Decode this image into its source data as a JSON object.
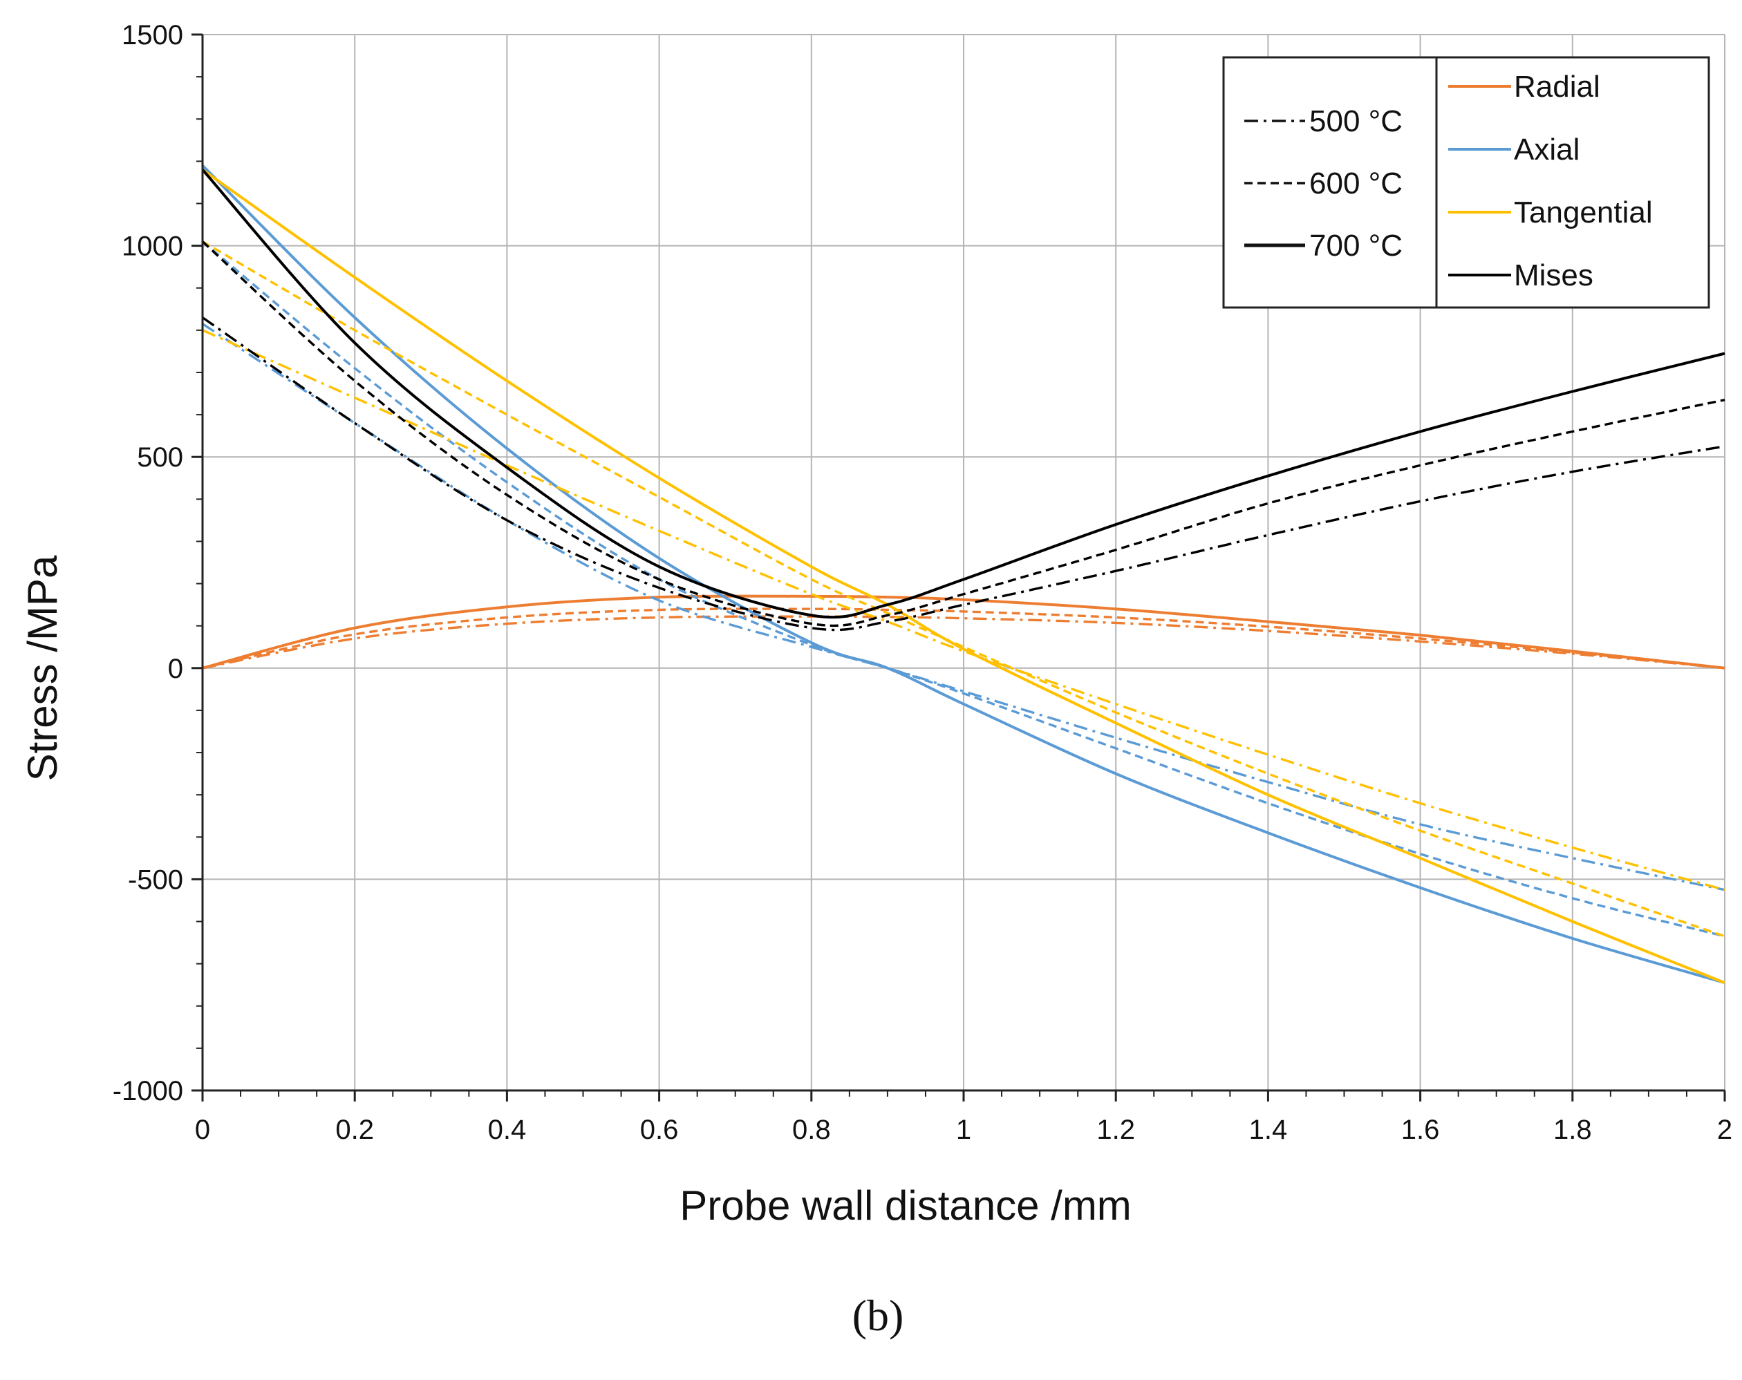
{
  "chart_data": {
    "type": "line",
    "title": "",
    "xlabel": "Probe wall distance /mm",
    "ylabel": "Stress /MPa",
    "xlim": [
      0,
      2
    ],
    "ylim": [
      -1000,
      1500
    ],
    "grid": true,
    "x_ticks": [
      0,
      0.2,
      0.4,
      0.6,
      0.8,
      1,
      1.2,
      1.4,
      1.6,
      1.8,
      2
    ],
    "x_tick_labels": [
      "0",
      "0.2",
      "0.4",
      "0.6",
      "0.8",
      "1",
      "1.2",
      "1.4",
      "1.6",
      "1.8",
      "2"
    ],
    "y_ticks": [
      -1000,
      -500,
      0,
      500,
      1000,
      1500
    ],
    "y_tick_labels": [
      "-1000",
      "-500",
      "0",
      "500",
      "1000",
      "1500"
    ],
    "legend_placement": "top-right",
    "legend_styles": [
      {
        "label": "500 °C",
        "dash": "dashdot"
      },
      {
        "label": "600 °C",
        "dash": "dashed"
      },
      {
        "label": "700 °C",
        "dash": "solid"
      }
    ],
    "legend_components": [
      {
        "label": "Radial",
        "color": "#ED7D31"
      },
      {
        "label": "Axial",
        "color": "#5B9BD5"
      },
      {
        "label": "Tangential",
        "color": "#FFC000"
      },
      {
        "label": "Mises",
        "color": "#000000"
      }
    ],
    "panel_label": "(b)",
    "x": [
      0,
      0.2,
      0.4,
      0.6,
      0.8,
      0.9,
      1.0,
      1.2,
      1.4,
      1.6,
      1.8,
      2.0
    ],
    "series": [
      {
        "name": "Radial 500 °C",
        "component": "Radial",
        "temperature": "500 °C",
        "values": [
          0,
          70,
          105,
          120,
          122,
          121,
          118,
          107,
          88,
          63,
          34,
          0
        ]
      },
      {
        "name": "Radial 600 °C",
        "component": "Radial",
        "temperature": "600 °C",
        "values": [
          0,
          80,
          120,
          138,
          140,
          138,
          134,
          120,
          98,
          70,
          37,
          0
        ]
      },
      {
        "name": "Radial 700 °C",
        "component": "Radial",
        "temperature": "700 °C",
        "values": [
          0,
          95,
          145,
          168,
          170,
          168,
          162,
          140,
          110,
          78,
          40,
          0
        ]
      },
      {
        "name": "Axial 500 °C",
        "component": "Axial",
        "temperature": "500 °C",
        "values": [
          815,
          580,
          350,
          160,
          50,
          0,
          -55,
          -165,
          -270,
          -370,
          -450,
          -525
        ]
      },
      {
        "name": "Axial 600 °C",
        "component": "Axial",
        "temperature": "600 °C",
        "values": [
          1010,
          710,
          440,
          210,
          55,
          0,
          -60,
          -190,
          -320,
          -440,
          -545,
          -635
        ]
      },
      {
        "name": "Axial 700 °C",
        "component": "Axial",
        "temperature": "700 °C",
        "values": [
          1190,
          830,
          520,
          260,
          60,
          0,
          -85,
          -250,
          -390,
          -520,
          -640,
          -745
        ]
      },
      {
        "name": "Tangential 500 °C",
        "component": "Tangential",
        "temperature": "500 °C",
        "values": [
          800,
          640,
          480,
          325,
          175,
          110,
          40,
          -85,
          -205,
          -320,
          -425,
          -525
        ]
      },
      {
        "name": "Tangential 600 °C",
        "component": "Tangential",
        "temperature": "600 °C",
        "values": [
          1010,
          800,
          600,
          405,
          210,
          130,
          50,
          -105,
          -250,
          -385,
          -510,
          -635
        ]
      },
      {
        "name": "Tangential 700 °C",
        "component": "Tangential",
        "temperature": "700 °C",
        "values": [
          1180,
          925,
          680,
          450,
          240,
          150,
          45,
          -130,
          -300,
          -450,
          -600,
          -745
        ]
      },
      {
        "name": "Mises 500 °C",
        "component": "Mises",
        "temperature": "500 °C",
        "values": [
          830,
          580,
          350,
          190,
          95,
          110,
          150,
          230,
          315,
          395,
          465,
          525
        ]
      },
      {
        "name": "Mises 600 °C",
        "component": "Mises",
        "temperature": "600 °C",
        "values": [
          1010,
          680,
          410,
          210,
          105,
          125,
          175,
          280,
          390,
          480,
          560,
          635
        ]
      },
      {
        "name": "Mises 700 °C",
        "component": "Mises",
        "temperature": "700 °C",
        "values": [
          1180,
          770,
          475,
          240,
          125,
          150,
          210,
          340,
          455,
          560,
          655,
          745
        ]
      }
    ]
  }
}
